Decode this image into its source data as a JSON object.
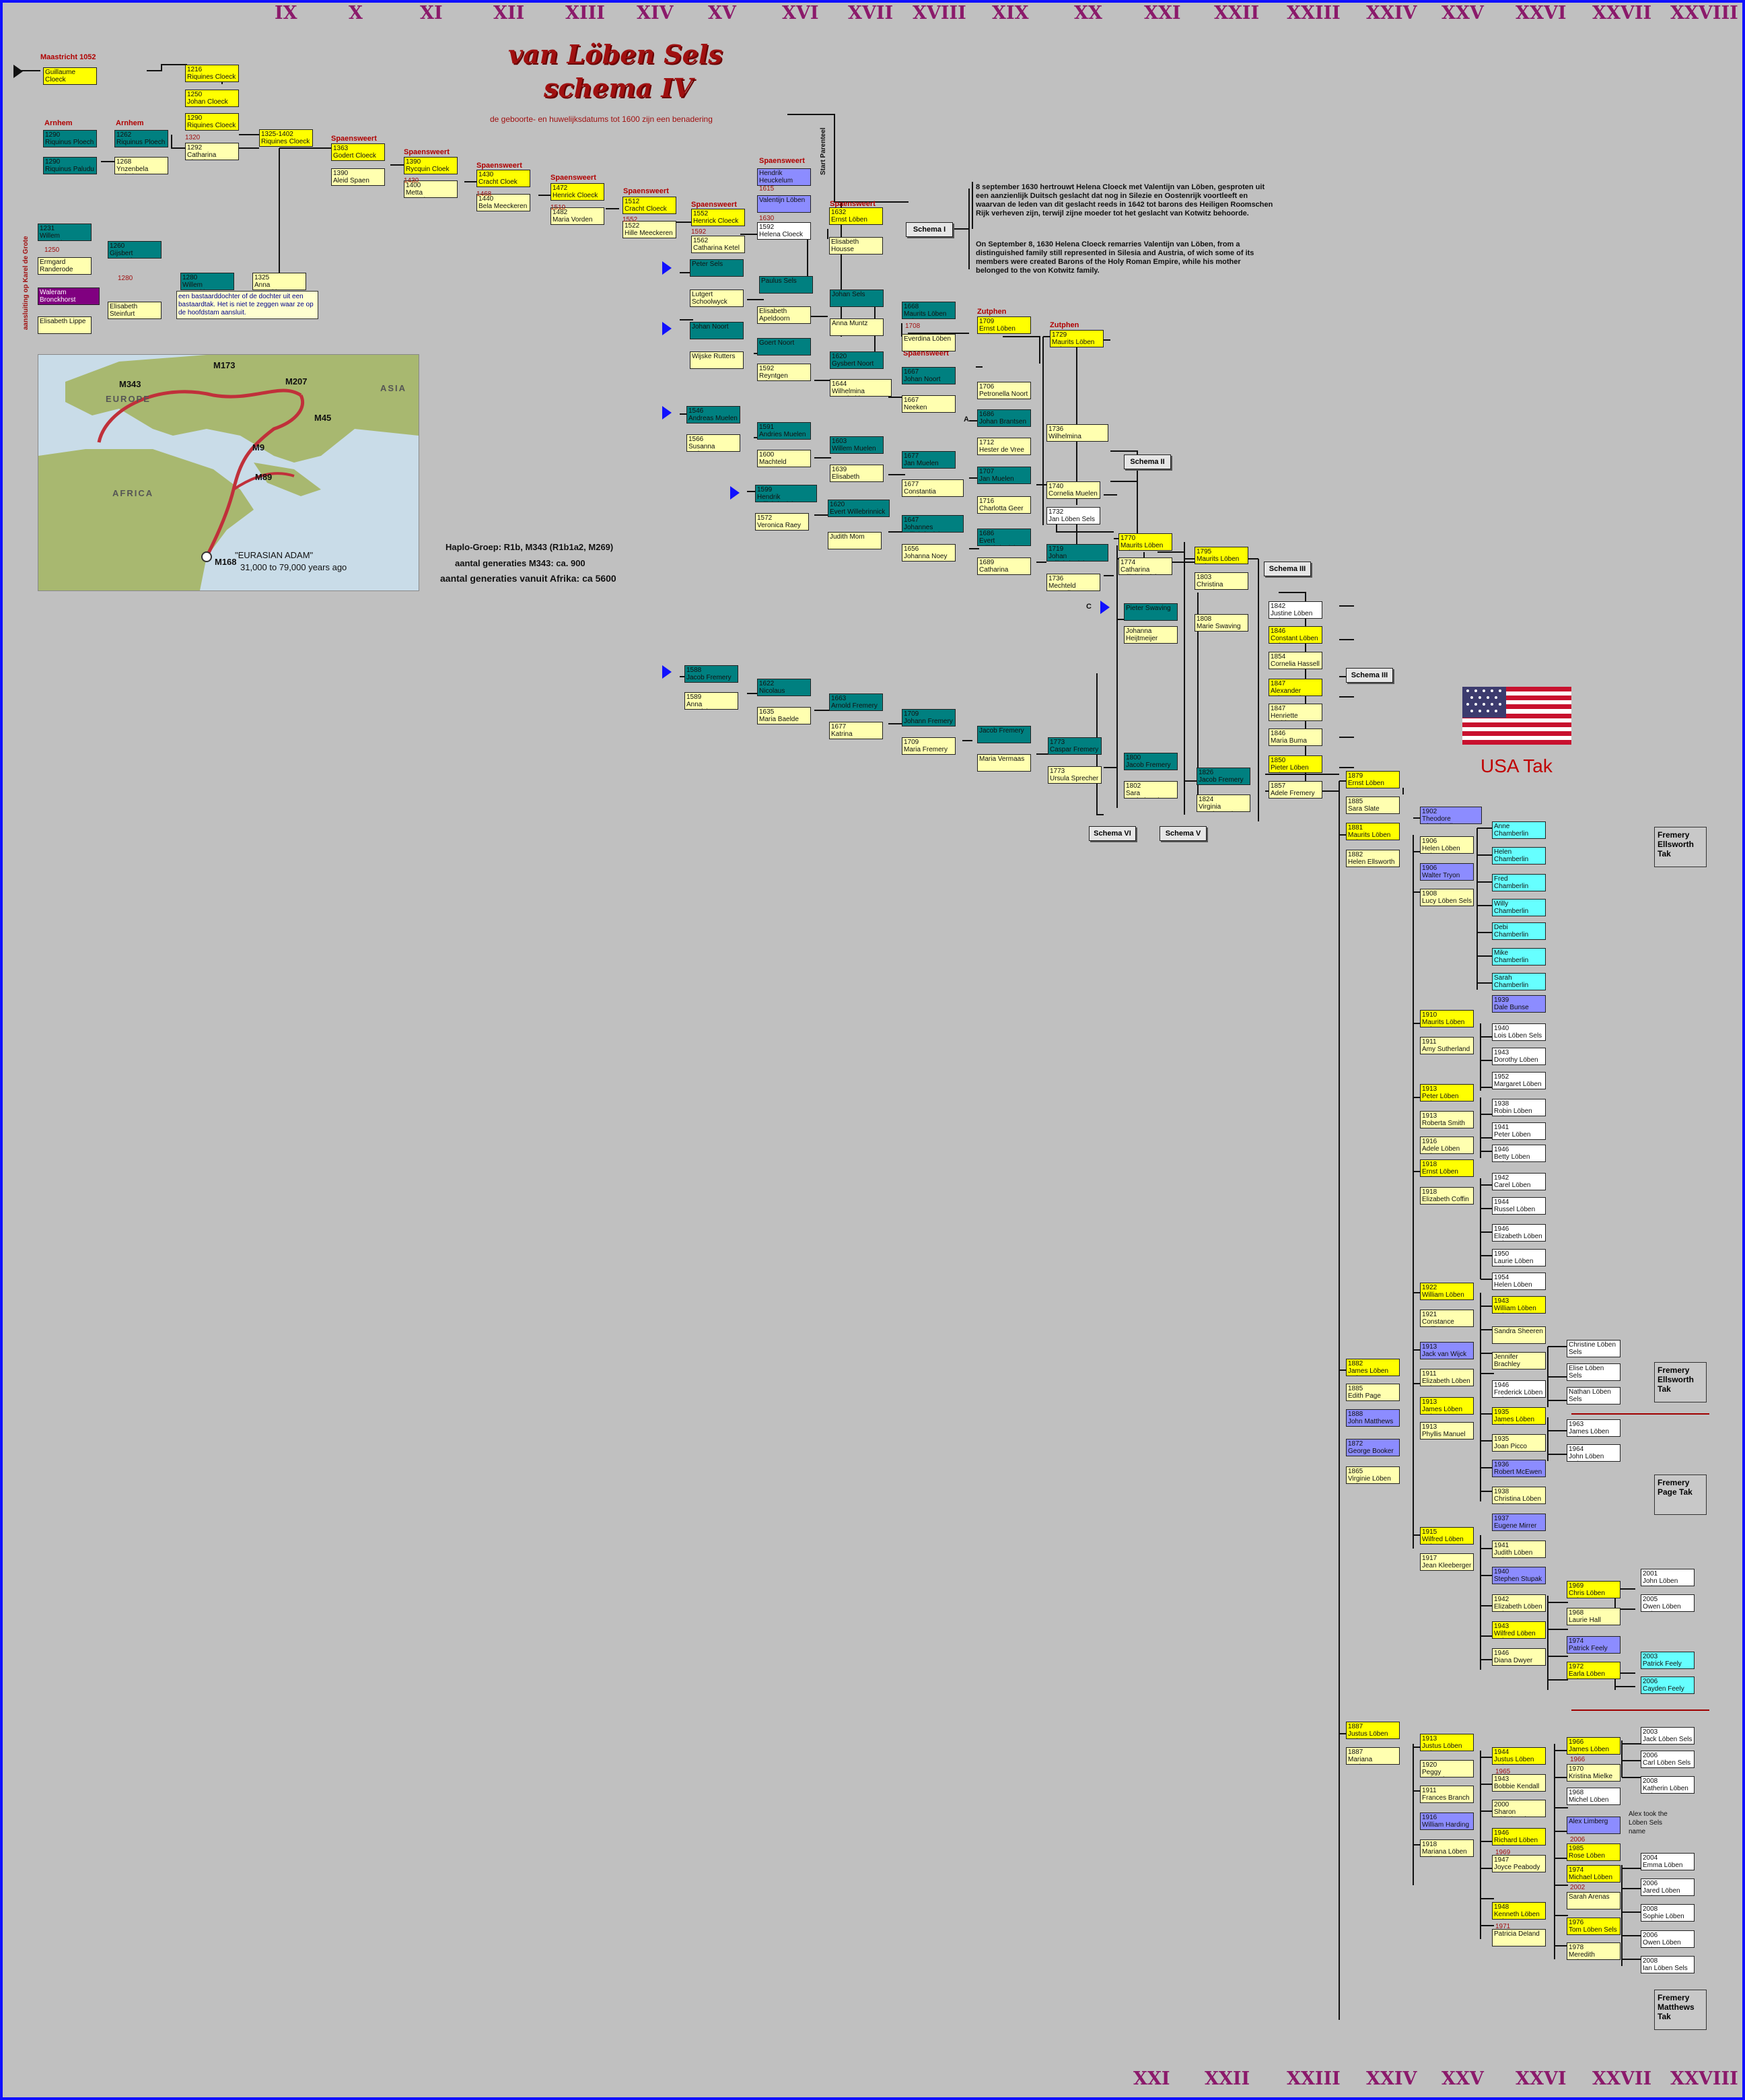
{
  "title_line1": "van Löben Sels",
  "title_line2": "schema IV",
  "subtitle": "de geboorte- en huwelijksdatums tot 1600 zijn een benadering",
  "generations_top": [
    "IX",
    "X",
    "XI",
    "XII",
    "XIII",
    "XIV",
    "XV",
    "XVI",
    "XVII",
    "XVIII",
    "XIX",
    "XX",
    "XXI",
    "XXII",
    "XXIII",
    "XXIV",
    "XXV",
    "XXVI",
    "XXVII",
    "XXVIII"
  ],
  "generations_bottom": [
    "XXI",
    "XXII",
    "XXIII",
    "XXIV",
    "XXV",
    "XXVI",
    "XXVII",
    "XXVIII"
  ],
  "places": {
    "maastricht": "Maastricht 1052",
    "arnhem1": "Arnhem",
    "arnhem2": "Arnhem",
    "spaensweert1": "Spaensweert",
    "spaensweert2": "Spaensweert",
    "spaensweert3": "Spaensweert",
    "spaensweert4": "Spaensweert",
    "spaensweert5": "Spaensweert",
    "spaensweert6": "Spaensweert",
    "spaensweert7": "Spaensweert",
    "spaensweert8": "Spaensweert",
    "spaensweert9": "Spaensweert",
    "zutphen1": "Zutphen",
    "zutphen2": "Zutphen"
  },
  "vertical_labels": {
    "karel": "aansluiting op Karel de Grote",
    "parenteel": "Start Parenteel"
  },
  "bastard_note": "een bastaarddochter of de dochter uit een bastaardtak. Het is niet te zeggen waar ze op de hoofdstam aansluit.",
  "info_nl": "8 september 1630 hertrouwt Helena Cloeck met Valentijn van Löben, gesproten uit een aanzienlijk Duitsch geslacht dat nog in Silezie en Oostenrijk voortleeft en waarvan de leden van dit geslacht reeds in 1642 tot barons des Heiligen Roomschen Rijk verheven zijn, terwijl zijne moeder tot het geslacht van Kotwitz behoorde.",
  "info_en": "On September 8, 1630 Helena Cloeck remarries Valentijn van Löben, from a distinguished family still represented in Silesia and Austria, of wich some of its members were created Barons of the Holy Roman Empire, while his mother belonged to the von Kotwitz family.",
  "haplo": {
    "line1": "Haplo-Groep: R1b, M343 (R1b1a2, M269)",
    "line2": "aantal generaties M343: ca. 900",
    "line3": "aantal generaties vanuit Afrika: ca 5600"
  },
  "map": {
    "labels": [
      "EUROPE",
      "ASIA",
      "AFRICA"
    ],
    "markers": [
      "M173",
      "M343",
      "M207",
      "M45",
      "M9",
      "M89",
      "M168"
    ],
    "adam_title": "\"EURASIAN ADAM\"",
    "adam_sub": "31,000 to 79,000 years ago"
  },
  "usa": "USA Tak",
  "schemas": {
    "s1": "Schema I",
    "s2": "Schema II",
    "s3a": "Schema III",
    "s3b": "Schema III",
    "s6": "Schema VI",
    "s5": "Schema V"
  },
  "takken": {
    "t1": "Fremery Ellsworth Tak",
    "t2": "Fremery Ellsworth Tak",
    "t3": "Fremery Page Tak",
    "t4": "Fremery Matthews Tak"
  },
  "marks": {
    "a": "A",
    "c": "C"
  },
  "alex_note": "Alex took the Löben Sels name",
  "people": {
    "p1": "Guillaume Cloeck",
    "p2y": "1216",
    "p2": "Riquines Cloeck",
    "p3y": "1250",
    "p3": "Johan Cloeck",
    "p4y": "1290",
    "p4": "Riquines Cloeck",
    "p5y": "1320",
    "p6y": "1292",
    "p6": "Catharina Ploech",
    "p7y": "1290",
    "p7": "Riquinus Ploech",
    "p8y": "1262",
    "p8": "Riquinus Ploech",
    "p9y": "1290",
    "p9": "Riquinus Paludu",
    "p10y": "1268",
    "p10": "Ynzenbela Palude",
    "p11y": "1325-1402",
    "p11": "Riquines Cloeck",
    "p12y": "1363",
    "p12": "Godert Cloeck",
    "p13y": "1390",
    "p13": "Aleid Spaen",
    "p14y": "1390",
    "p14": "Rycquin Cloek",
    "p15y": "1430",
    "p16y": "1400",
    "p16": "Metta Camphusen",
    "p17y": "1430",
    "p17": "Cracht Cloek",
    "p18y": "1468",
    "p19y": "1440",
    "p19": "Bela Meeckeren",
    "p20y": "1472",
    "p20": "Henrick Cloeck",
    "p21y": "1510",
    "p22y": "1482",
    "p22": "Maria Vorden",
    "p23y": "1512",
    "p23": "Cracht Cloeck",
    "p24y": "1552",
    "p25y": "1522",
    "p25": "Hille Meeckeren",
    "p26y": "1552",
    "p26": "Henrick Cloeck",
    "p27y": "1592",
    "p28y": "1562",
    "p28": "Catharina Ketel",
    "p29": "Hendrik Heuckelum",
    "p30y": "1615",
    "p31": "Valentijn Löben",
    "p32y": "1630",
    "p33y": "1592",
    "p33": "Helena Cloeck",
    "p34y": "1632",
    "p34": "Ernst Löben",
    "p35": "Elisabeth Housse",
    "p36": "Peter Sels",
    "p37": "Lutgert Schoolwyck",
    "p38": "Paulus Sels",
    "p39": "Elisabeth Apeldoorn",
    "p40": "Johan Sels",
    "p41": "Anna Muntz",
    "p42y": "1668",
    "p42": "Maurits Löben Sels",
    "p43y": "1708",
    "p44": "Everdina Löben",
    "p45y": "1709",
    "p45": "Ernst Löben Sels",
    "p46y": "1729",
    "p46": "Maurits Löben Sels",
    "p47": "Johan Noort",
    "p48": "Wijske Rutters",
    "p49": "Goert Noort",
    "p50y": "1592",
    "p50": "Reyntgen Brienen",
    "p51y": "1620",
    "p51": "Gysbert Noort",
    "p52y": "1644",
    "p52": "Wilhelmina Wenthold",
    "p53y": "1667",
    "p53": "Johan Noort",
    "p54y": "1667",
    "p54": "Neeken Verstegen",
    "p55y": "1706",
    "p55": "Petronella Noort",
    "p56y": "1546",
    "p56": "Andreas Muelen",
    "p57y": "1566",
    "p57": "Susanna Malapert",
    "p58y": "1591",
    "p58": "Andries Muelen",
    "p59y": "1600",
    "p59": "Machteld Santen",
    "p60y": "1603",
    "p60": "Willem Muelen",
    "p61y": "1639",
    "p61": "Elisabeth Coymans",
    "p62y": "1677",
    "p62": "Jan Muelen",
    "p63y": "1677",
    "p63": "Constantia Huydecoper",
    "p64y": "1686",
    "p64": "Johan Brantsen",
    "p65y": "1712",
    "p65": "Hester de Vree",
    "p66y": "1736",
    "p66": "Wilhelmina Brantsen",
    "p67y": "1707",
    "p67": "Jan Muelen",
    "p68y": "1716",
    "p68": "Charlotta Geer",
    "p69y": "1740",
    "p69": "Cornelia Muelen",
    "p70y": "1732",
    "p70": "Jan Löben Sels",
    "p71y": "1599",
    "p71": "Hendrik Willebrinnick",
    "p72y": "1572",
    "p72": "Veronica Raey",
    "p73y": "1620",
    "p73": "Evert Willebrinnick",
    "p74": "Judith Mom",
    "p75y": "1647",
    "p75": "Johannes Willebrinnick",
    "p76y": "1656",
    "p76": "Johanna Noey",
    "p77y": "1686",
    "p77": "Evert Willebrinnick",
    "p78y": "1689",
    "p78": "Catharina Bongart",
    "p79y": "1719",
    "p79": "Johan Willebrinnick",
    "p80y": "1736",
    "p80": "Mechteld Hassell",
    "p81y": "1770",
    "p81": "Maurits Löben Sels",
    "p82y": "1774",
    "p82": "Catharina Willebrinnick",
    "p83y": "1795",
    "p83": "Maurits Löben Sels",
    "p84y": "1803",
    "p84": "Christina Swaving",
    "p85": "Pieter Swaving",
    "p86": "Johanna Heijtmeijer",
    "p87y": "1808",
    "p87": "Marie Swaving",
    "p88y": "1842",
    "p88": "Justine Löben Sels",
    "p89y": "1846",
    "p89": "Constant Löben Sels",
    "p90y": "1854",
    "p90": "Cornelia Hassell",
    "p91y": "1847",
    "p91": "Alexander Löben Sels",
    "p92y": "1847",
    "p92": "Henriette Andringa",
    "p93y": "1846",
    "p93": "Maria Buma",
    "p94y": "1850",
    "p94": "Pieter Löben Sels",
    "p95y": "1857",
    "p95": "Adele Fremery",
    "p96y": "1588",
    "p96": "Jacob Fremery",
    "p97y": "1589",
    "p97": "Anna Grapichove",
    "p98y": "1622",
    "p98": "Nicolaus Fremery",
    "p99y": "1635",
    "p99": "Maria Baelde",
    "p100y": "1663",
    "p100": "Arnold Fremery",
    "p101y": "1677",
    "p101": "Katrina Barnsteen",
    "p102y": "1709",
    "p102": "Johann Fremery",
    "p103y": "1709",
    "p103": "Maria Fremery",
    "p104": "Jacob Fremery",
    "p105": "Maria Vermaas",
    "p106y": "1773",
    "p106": "Caspar Fremery",
    "p107y": "1773",
    "p107": "Ursula Sprecher",
    "p108y": "1800",
    "p108": "Jacob Fremery",
    "p109y": "1802",
    "p109": "Sara Nederburgh",
    "p110y": "1826",
    "p110": "Jacob Fremery",
    "p111y": "1824",
    "p111": "Virginia Herckenrath",
    "p112y": "1231",
    "p112": "Willem Bronckhorst",
    "p113y": "1250",
    "p114": "Ermgard Randerode",
    "p115y": "1260",
    "p115": "Gijsbert Bronckhorst",
    "p116y": "1280",
    "p116": "Willem Bronckhorst",
    "p117y": "1280",
    "p118y": "1325",
    "p118": "Anna Bronckhorst",
    "p119": "Waleram Bronckhorst",
    "p120": "Elisabeth Steinfurt",
    "p121": "Elisabeth Lippe",
    "q1y": "1879",
    "q1": "Ernst Löben Sels",
    "q2y": "1885",
    "q2": "Sara Slate",
    "q3y": "1881",
    "q3": "Maurits Löben Sels",
    "q4y": "1882",
    "q4": "Helen Ellsworth",
    "q5y": "1902",
    "q5": "Theodore Chamberlin",
    "q6y": "1906",
    "q6": "Helen Löben Sels",
    "q7y": "1906",
    "q7": "Walter Tryon",
    "q8y": "1908",
    "q8": "Lucy Löben Sels",
    "q9": "Anne Chamberlin",
    "q10": "Helen Chamberlin",
    "q11": "Fred Chamberlin",
    "q12": "Willy Chamberlin",
    "q13": "Debi Chamberlin",
    "q14": "Mike Chamberlin",
    "q15": "Sarah Chamberlin",
    "q16y": "1910",
    "q16": "Maurits Löben Sels",
    "q17y": "1911",
    "q17": "Amy Sutherland",
    "q18y": "1939",
    "q18": "Dale Bunse",
    "q19y": "1940",
    "q19": "Lois Löben Sels",
    "q20y": "1943",
    "q20": "Dorothy Löben Sels",
    "q21y": "1952",
    "q21": "Margaret Löben Sels",
    "q22y": "1913",
    "q22": "Peter Löben Sels",
    "q23y": "1913",
    "q23": "Roberta Smith",
    "q24y": "1938",
    "q24": "Robin Löben Sels",
    "q25y": "1941",
    "q25": "Peter Löben Sels",
    "q26y": "1916",
    "q26": "Adele Löben Sels",
    "q27y": "1946",
    "q27": "Betty Löben Sels",
    "q28y": "1918",
    "q28": "Ernst Löben Sels",
    "q29y": "1918",
    "q29": "Elizabeth Coffin",
    "q30y": "1942",
    "q30": "Carel Löben Sels",
    "q31y": "1944",
    "q31": "Russel Löben Sels",
    "q32y": "1946",
    "q32": "Elizabeth Löben Sels",
    "q33y": "1950",
    "q33": "Laurie Löben Sels",
    "q34y": "1954",
    "q34": "Helen Löben Sels",
    "q35y": "1922",
    "q35": "William Löben Sels",
    "q36y": "1921",
    "q36": "Constance Coffin",
    "q37y": "1943",
    "q37": "William Löben Sels",
    "q38": "Sandra Sheeren",
    "q39": "Jennifer Brachley",
    "q40": "Christine Löben Sels",
    "q41": "Elise Löben Sels",
    "q42": "Nathan Löben Sels",
    "q43y": "1913",
    "q43": "Jack van Wijck",
    "q44y": "1911",
    "q44": "Elizabeth Löben Sels",
    "q45y": "1946",
    "q45": "Frederick Löben Sels",
    "q46y": "1882",
    "q46": "James Löben Sels",
    "q47y": "1885",
    "q47": "Edith Page",
    "q48y": "1888",
    "q48": "John Matthews",
    "q49y": "1872",
    "q49": "George Booker",
    "q50y": "1865",
    "q50": "Virginie Löben Sels",
    "q51y": "1913",
    "q51": "James Löben Sels",
    "q52y": "1913",
    "q52": "Phyllis Manuel",
    "q53y": "1935",
    "q53": "James Löben Sels",
    "q54y": "1935",
    "q54": "Joan Picco",
    "q55y": "1963",
    "q55": "James Löben Sels",
    "q56y": "1964",
    "q56": "John Löben Sels",
    "q57y": "1936",
    "q57": "Robert McEwen",
    "q58y": "1938",
    "q58": "Christina Löben Sels",
    "q59y": "1937",
    "q59": "Eugene Mirrer",
    "q60y": "1941",
    "q60": "Judith Löben Sels",
    "q61y": "1915",
    "q61": "Wilfred Löben Sels",
    "q62y": "1917",
    "q62": "Jean Kleeberger",
    "q63y": "1940",
    "q63": "Stephen Stupak",
    "q64y": "1942",
    "q64": "Elizabeth Löben Sels",
    "q65y": "1943",
    "q65": "Wilfred Löben Sels",
    "q66y": "1946",
    "q66": "Diana Dwyer",
    "q67y": "1969",
    "q67": "Chris Löben Sels",
    "q68y": "1968",
    "q68": "Laurie Hall",
    "q69y": "1974",
    "q69": "Patrick Feely",
    "q70y": "1972",
    "q70": "Earla Löben Sels",
    "q71y": "2001",
    "q71": "John Löben Sels",
    "q72y": "2005",
    "q72": "Owen Löben Sels",
    "q73y": "2003",
    "q73": "Patrick Feely",
    "q74y": "2006",
    "q74": "Cayden Feely",
    "q75y": "1887",
    "q75": "Justus Löben Sels",
    "q76y": "1887",
    "q76": "Mariana Mathews",
    "q77y": "1913",
    "q77": "Justus Löben Sels",
    "q78y": "1920",
    "q78": "Peggy Reisenberg",
    "q79y": "1911",
    "q79": "Frances Branch",
    "q80y": "1916",
    "q80": "William Harding",
    "q81y": "1918",
    "q81": "Mariana Löben Sels",
    "q82y": "1944",
    "q82": "Justus Löben Sels",
    "q83y": "1965",
    "q84y": "1943",
    "q84": "Bobbie Kendall",
    "q85y": "2000",
    "q85": "Sharon Whitehead",
    "q86y": "1946",
    "q86": "Richard Löben Sels",
    "q87y": "1969",
    "q88y": "1947",
    "q88": "Joyce Peabody",
    "q89y": "1948",
    "q89": "Kenneth Löben Sels",
    "q90y": "1971",
    "q91": "Patricia Deland",
    "q92y": "1966",
    "q92": "James Löben Sels",
    "q93y": "1966",
    "q94y": "1970",
    "q94": "Kristina Mielke",
    "q95y": "1968",
    "q95": "Michel Löben Sels",
    "q96": "Alex Limberg",
    "q97y": "2006",
    "q98y": "1985",
    "q98": "Rose Löben Sels",
    "q99y": "1974",
    "q99": "Michael Löben Sels",
    "q100y": "2002",
    "q101": "Sarah Arenas",
    "q102y": "1976",
    "q102": "Tom Löben Sels",
    "q103y": "1978",
    "q103": "Meredith Roberts",
    "q104y": "2003",
    "q104": "Jack Löben Sels",
    "q105y": "2006",
    "q105": "Carl Löben Sels",
    "q106y": "2008",
    "q106": "Katherin Löben Sels",
    "q107y": "2004",
    "q107": "Emma Löben Sels",
    "q108y": "2006",
    "q108": "Jared Löben Sels",
    "q109y": "2008",
    "q109": "Sophie Löben Sels",
    "q110y": "2006",
    "q110": "Owen Löben Sels",
    "q111y": "2008",
    "q111": "Ian Löben Sels"
  }
}
